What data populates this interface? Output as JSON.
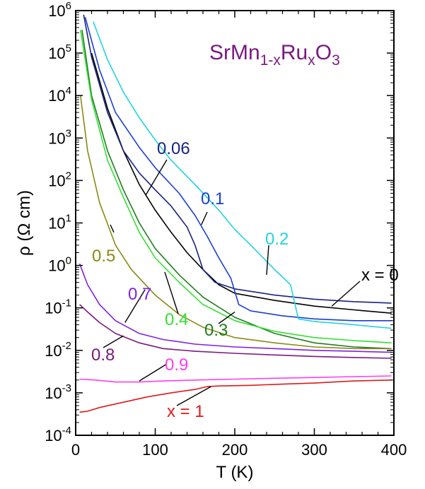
{
  "chart_data": {
    "type": "line",
    "title": "",
    "xlabel": "T (K)",
    "ylabel": "ρ (Ω cm)",
    "xlim": [
      0,
      400
    ],
    "ylim": [
      0.0001,
      1000000
    ],
    "yscale": "log",
    "grid": false,
    "legend": "none",
    "x_ticks": [
      "0",
      "100",
      "200",
      "300",
      "400"
    ],
    "y_ticks": [
      {
        "base": "10",
        "exp": "-4"
      },
      {
        "base": "10",
        "exp": "-3"
      },
      {
        "base": "10",
        "exp": "-2"
      },
      {
        "base": "10",
        "exp": "-1"
      },
      {
        "base": "10",
        "exp": "0"
      },
      {
        "base": "10",
        "exp": "1"
      },
      {
        "base": "10",
        "exp": "2"
      },
      {
        "base": "10",
        "exp": "3"
      },
      {
        "base": "10",
        "exp": "4"
      },
      {
        "base": "10",
        "exp": "5"
      },
      {
        "base": "10",
        "exp": "6"
      }
    ],
    "compound_label": {
      "parts": [
        "SrMn",
        "1-x",
        "Ru",
        "x",
        "O",
        "3"
      ],
      "color": "#7a1a80"
    },
    "series": [
      {
        "name": "x = 0",
        "color": "#000000",
        "x": [
          20,
          40,
          60,
          80,
          100,
          120,
          140,
          160,
          180,
          200,
          250,
          300,
          350,
          397
        ],
        "y": [
          100000,
          5000,
          500,
          80,
          20,
          6,
          2,
          0.8,
          0.35,
          0.22,
          0.15,
          0.11,
          0.09,
          0.075
        ]
      },
      {
        "name": "0.06",
        "color": "#1a237e",
        "x": [
          10,
          20,
          40,
          60,
          80,
          100,
          120,
          140,
          150,
          160,
          175,
          200,
          250,
          300,
          350,
          397
        ],
        "y": [
          800000,
          80000,
          4000,
          500,
          150,
          60,
          25,
          8,
          3,
          0.8,
          0.4,
          0.28,
          0.2,
          0.16,
          0.14,
          0.13
        ]
      },
      {
        "name": "0.1",
        "color": "#1a3fd1",
        "x": [
          12,
          30,
          50,
          80,
          100,
          130,
          150,
          165,
          180,
          195,
          205,
          220,
          260,
          300,
          350,
          397
        ],
        "y": [
          700000,
          40000,
          4000,
          600,
          200,
          50,
          15,
          5,
          1.5,
          0.5,
          0.12,
          0.085,
          0.065,
          0.055,
          0.05,
          0.05
        ]
      },
      {
        "name": "0.2",
        "color": "#22d4e0",
        "x": [
          22,
          40,
          60,
          80,
          100,
          120,
          150,
          180,
          200,
          220,
          250,
          270,
          280,
          300,
          350,
          397
        ],
        "y": [
          550000,
          70000,
          12000,
          3000,
          900,
          300,
          80,
          20,
          7,
          3,
          0.8,
          0.35,
          0.055,
          0.048,
          0.04,
          0.033
        ]
      },
      {
        "name": "0.3",
        "color": "#1e7d1e",
        "x": [
          8,
          20,
          40,
          60,
          80,
          100,
          130,
          160,
          200,
          250,
          300,
          350,
          397
        ],
        "y": [
          350000,
          10000,
          500,
          60,
          10,
          2.5,
          0.6,
          0.18,
          0.06,
          0.025,
          0.015,
          0.012,
          0.011
        ]
      },
      {
        "name": "0.4",
        "color": "#33e033",
        "x": [
          6,
          20,
          40,
          60,
          80,
          100,
          130,
          160,
          200,
          250,
          300,
          350,
          397
        ],
        "y": [
          350000,
          8000,
          300,
          40,
          6,
          1.5,
          0.4,
          0.12,
          0.05,
          0.028,
          0.02,
          0.017,
          0.015
        ]
      },
      {
        "name": "0.5",
        "color": "#8a8a14",
        "x": [
          6,
          15,
          30,
          50,
          70,
          100,
          130,
          160,
          200,
          250,
          300,
          350,
          397
        ],
        "y": [
          10000,
          500,
          30,
          3,
          0.8,
          0.2,
          0.07,
          0.035,
          0.02,
          0.015,
          0.012,
          0.011,
          0.011
        ]
      },
      {
        "name": "0.7",
        "color": "#8020e0",
        "x": [
          5,
          15,
          30,
          50,
          80,
          110,
          150,
          200,
          250,
          300,
          350,
          397
        ],
        "y": [
          1.1,
          0.35,
          0.12,
          0.05,
          0.025,
          0.018,
          0.014,
          0.012,
          0.011,
          0.01,
          0.0095,
          0.009
        ]
      },
      {
        "name": "0.8",
        "color": "#7a1a80",
        "x": [
          5,
          15,
          30,
          50,
          80,
          110,
          150,
          200,
          250,
          300,
          350,
          397
        ],
        "y": [
          0.12,
          0.08,
          0.045,
          0.025,
          0.015,
          0.011,
          0.0095,
          0.0085,
          0.0078,
          0.0072,
          0.0068,
          0.0065
        ]
      },
      {
        "name": "0.9",
        "color": "#ff3df0",
        "x": [
          5,
          25,
          50,
          80,
          110,
          150,
          200,
          250,
          300,
          350,
          397
        ],
        "y": [
          0.0021,
          0.002,
          0.0018,
          0.0018,
          0.0019,
          0.002,
          0.0021,
          0.0022,
          0.0023,
          0.0024,
          0.0025
        ]
      },
      {
        "name": "x = 1",
        "color": "#e01a1a",
        "x": [
          5,
          15,
          30,
          60,
          90,
          120,
          150,
          165,
          180,
          220,
          260,
          300,
          350,
          397
        ],
        "y": [
          0.00035,
          0.00037,
          0.00045,
          0.0006,
          0.0008,
          0.001,
          0.0012,
          0.0014,
          0.00145,
          0.0015,
          0.0016,
          0.0017,
          0.0019,
          0.002
        ]
      }
    ],
    "annotations": [
      {
        "text": "0.06",
        "color": "#1a237e",
        "anchor_x": 88,
        "anchor_y": 45,
        "point_x": 250,
        "point_y": 205
      },
      {
        "text": "0.1",
        "color": "#1a3fd1",
        "anchor_x": 158,
        "anchor_y": 9,
        "point_x": 300,
        "point_y": 280
      },
      {
        "text": "0.2",
        "color": "#22d4e0",
        "anchor_x": 240,
        "anchor_y": 0.6,
        "point_x": 397,
        "point_y": 338
      },
      {
        "text": "x = 0",
        "color": "#000000",
        "anchor_x": 322,
        "anchor_y": 0.11,
        "point_x": 556,
        "point_y": 390
      },
      {
        "text": "0.3",
        "color": "#1e7d1e",
        "anchor_x": 200,
        "anchor_y": 0.08,
        "point_x": 310,
        "point_y": 466
      },
      {
        "text": "0.4",
        "color": "#33e033",
        "anchor_x": 112,
        "anchor_y": 0.7,
        "point_x": 254,
        "point_y": 451
      },
      {
        "text": "0.5",
        "color": "#8a8a14",
        "anchor_x": 48,
        "anchor_y": 6,
        "point_x": 146,
        "point_y": 362
      },
      {
        "text": "0.7",
        "color": "#8020e0",
        "anchor_x": 62,
        "anchor_y": 0.045,
        "point_x": 201,
        "point_y": 415
      },
      {
        "text": "0.8",
        "color": "#7a1a80",
        "anchor_x": 60,
        "anchor_y": 0.022,
        "point_x": 150,
        "point_y": 501
      },
      {
        "text": "0.9",
        "color": "#ff3df0",
        "anchor_x": 80,
        "anchor_y": 0.0019,
        "point_x": 234,
        "point_y": 515
      },
      {
        "text": "x = 1",
        "color": "#e01a1a",
        "anchor_x": 170,
        "anchor_y": 0.0014,
        "point_x": 265,
        "point_y": 582
      }
    ]
  }
}
